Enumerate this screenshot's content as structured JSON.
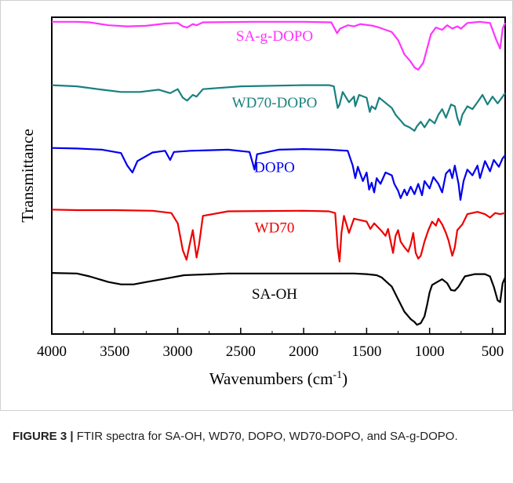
{
  "chart_data": {
    "type": "line",
    "xlabel": "Wavenumbers (cm⁻¹)",
    "ylabel": "Transmittance",
    "xlim": [
      4000,
      400
    ],
    "x_reversed": true,
    "xticks": [
      4000,
      3500,
      3000,
      2500,
      2000,
      1500,
      1000,
      500
    ],
    "grid": false,
    "legend": "inline-labels",
    "series": [
      {
        "name": "SA-g-DOPO",
        "color": "#ff33ff",
        "offset": 4,
        "points": [
          [
            4000,
            0.92
          ],
          [
            3800,
            0.92
          ],
          [
            3700,
            0.91
          ],
          [
            3550,
            0.86
          ],
          [
            3400,
            0.84
          ],
          [
            3250,
            0.85
          ],
          [
            3100,
            0.89
          ],
          [
            3000,
            0.9
          ],
          [
            2960,
            0.84
          ],
          [
            2925,
            0.82
          ],
          [
            2880,
            0.88
          ],
          [
            2850,
            0.86
          ],
          [
            2800,
            0.91
          ],
          [
            2400,
            0.92
          ],
          [
            2000,
            0.92
          ],
          [
            1780,
            0.91
          ],
          [
            1735,
            0.72
          ],
          [
            1710,
            0.8
          ],
          [
            1650,
            0.86
          ],
          [
            1600,
            0.84
          ],
          [
            1550,
            0.88
          ],
          [
            1450,
            0.85
          ],
          [
            1400,
            0.82
          ],
          [
            1300,
            0.74
          ],
          [
            1250,
            0.6
          ],
          [
            1200,
            0.35
          ],
          [
            1150,
            0.22
          ],
          [
            1120,
            0.12
          ],
          [
            1090,
            0.08
          ],
          [
            1050,
            0.2
          ],
          [
            1020,
            0.45
          ],
          [
            990,
            0.7
          ],
          [
            950,
            0.82
          ],
          [
            900,
            0.78
          ],
          [
            860,
            0.86
          ],
          [
            820,
            0.8
          ],
          [
            780,
            0.84
          ],
          [
            750,
            0.8
          ],
          [
            700,
            0.9
          ],
          [
            600,
            0.92
          ],
          [
            520,
            0.9
          ],
          [
            470,
            0.6
          ],
          [
            440,
            0.45
          ],
          [
            420,
            0.8
          ],
          [
            400,
            0.9
          ]
        ]
      },
      {
        "name": "WD70-DOPO",
        "color": "#1a8080",
        "offset": 3,
        "points": [
          [
            4000,
            0.92
          ],
          [
            3800,
            0.9
          ],
          [
            3600,
            0.84
          ],
          [
            3450,
            0.8
          ],
          [
            3300,
            0.8
          ],
          [
            3150,
            0.84
          ],
          [
            3060,
            0.78
          ],
          [
            3000,
            0.85
          ],
          [
            2960,
            0.7
          ],
          [
            2925,
            0.65
          ],
          [
            2880,
            0.75
          ],
          [
            2850,
            0.72
          ],
          [
            2800,
            0.85
          ],
          [
            2500,
            0.9
          ],
          [
            2000,
            0.92
          ],
          [
            1800,
            0.92
          ],
          [
            1760,
            0.9
          ],
          [
            1730,
            0.52
          ],
          [
            1715,
            0.58
          ],
          [
            1690,
            0.8
          ],
          [
            1640,
            0.62
          ],
          [
            1600,
            0.72
          ],
          [
            1590,
            0.55
          ],
          [
            1560,
            0.75
          ],
          [
            1500,
            0.7
          ],
          [
            1475,
            0.45
          ],
          [
            1460,
            0.55
          ],
          [
            1430,
            0.5
          ],
          [
            1400,
            0.7
          ],
          [
            1300,
            0.52
          ],
          [
            1270,
            0.4
          ],
          [
            1230,
            0.3
          ],
          [
            1200,
            0.22
          ],
          [
            1160,
            0.18
          ],
          [
            1120,
            0.12
          ],
          [
            1100,
            0.2
          ],
          [
            1070,
            0.28
          ],
          [
            1040,
            0.18
          ],
          [
            1000,
            0.32
          ],
          [
            960,
            0.25
          ],
          [
            930,
            0.4
          ],
          [
            900,
            0.5
          ],
          [
            870,
            0.35
          ],
          [
            830,
            0.58
          ],
          [
            800,
            0.55
          ],
          [
            780,
            0.35
          ],
          [
            760,
            0.22
          ],
          [
            740,
            0.4
          ],
          [
            700,
            0.55
          ],
          [
            660,
            0.5
          ],
          [
            620,
            0.62
          ],
          [
            580,
            0.75
          ],
          [
            540,
            0.58
          ],
          [
            500,
            0.72
          ],
          [
            460,
            0.6
          ],
          [
            420,
            0.72
          ],
          [
            400,
            0.78
          ]
        ]
      },
      {
        "name": "DOPO",
        "color": "#0000ee",
        "offset": 2,
        "points": [
          [
            4000,
            0.93
          ],
          [
            3800,
            0.92
          ],
          [
            3600,
            0.9
          ],
          [
            3450,
            0.84
          ],
          [
            3400,
            0.62
          ],
          [
            3360,
            0.5
          ],
          [
            3320,
            0.7
          ],
          [
            3200,
            0.85
          ],
          [
            3100,
            0.88
          ],
          [
            3060,
            0.72
          ],
          [
            3030,
            0.86
          ],
          [
            2900,
            0.88
          ],
          [
            2600,
            0.9
          ],
          [
            2430,
            0.86
          ],
          [
            2390,
            0.55
          ],
          [
            2370,
            0.82
          ],
          [
            2200,
            0.9
          ],
          [
            2000,
            0.91
          ],
          [
            1800,
            0.9
          ],
          [
            1650,
            0.88
          ],
          [
            1610,
            0.62
          ],
          [
            1590,
            0.4
          ],
          [
            1570,
            0.6
          ],
          [
            1530,
            0.35
          ],
          [
            1500,
            0.5
          ],
          [
            1480,
            0.2
          ],
          [
            1460,
            0.32
          ],
          [
            1440,
            0.15
          ],
          [
            1420,
            0.4
          ],
          [
            1390,
            0.3
          ],
          [
            1350,
            0.5
          ],
          [
            1300,
            0.45
          ],
          [
            1280,
            0.3
          ],
          [
            1250,
            0.18
          ],
          [
            1230,
            0.05
          ],
          [
            1200,
            0.2
          ],
          [
            1180,
            0.1
          ],
          [
            1150,
            0.25
          ],
          [
            1120,
            0.12
          ],
          [
            1090,
            0.3
          ],
          [
            1060,
            0.1
          ],
          [
            1040,
            0.35
          ],
          [
            1000,
            0.22
          ],
          [
            970,
            0.42
          ],
          [
            930,
            0.3
          ],
          [
            900,
            0.15
          ],
          [
            870,
            0.48
          ],
          [
            840,
            0.55
          ],
          [
            820,
            0.4
          ],
          [
            800,
            0.62
          ],
          [
            770,
            0.3
          ],
          [
            755,
            0.02
          ],
          [
            730,
            0.35
          ],
          [
            700,
            0.55
          ],
          [
            660,
            0.45
          ],
          [
            620,
            0.62
          ],
          [
            600,
            0.4
          ],
          [
            560,
            0.7
          ],
          [
            520,
            0.52
          ],
          [
            490,
            0.72
          ],
          [
            450,
            0.6
          ],
          [
            420,
            0.75
          ],
          [
            400,
            0.8
          ]
        ]
      },
      {
        "name": "WD70",
        "color": "#ee0000",
        "offset": 1,
        "points": [
          [
            4000,
            0.96
          ],
          [
            3800,
            0.95
          ],
          [
            3500,
            0.95
          ],
          [
            3200,
            0.94
          ],
          [
            3050,
            0.9
          ],
          [
            3000,
            0.72
          ],
          [
            2960,
            0.25
          ],
          [
            2930,
            0.08
          ],
          [
            2900,
            0.4
          ],
          [
            2880,
            0.6
          ],
          [
            2850,
            0.12
          ],
          [
            2830,
            0.35
          ],
          [
            2800,
            0.85
          ],
          [
            2600,
            0.93
          ],
          [
            2000,
            0.94
          ],
          [
            1800,
            0.93
          ],
          [
            1750,
            0.9
          ],
          [
            1730,
            0.3
          ],
          [
            1715,
            0.05
          ],
          [
            1700,
            0.55
          ],
          [
            1680,
            0.85
          ],
          [
            1640,
            0.55
          ],
          [
            1600,
            0.8
          ],
          [
            1500,
            0.75
          ],
          [
            1470,
            0.62
          ],
          [
            1440,
            0.72
          ],
          [
            1380,
            0.58
          ],
          [
            1350,
            0.5
          ],
          [
            1330,
            0.62
          ],
          [
            1290,
            0.2
          ],
          [
            1270,
            0.5
          ],
          [
            1250,
            0.6
          ],
          [
            1230,
            0.4
          ],
          [
            1200,
            0.3
          ],
          [
            1170,
            0.22
          ],
          [
            1150,
            0.35
          ],
          [
            1130,
            0.55
          ],
          [
            1110,
            0.2
          ],
          [
            1090,
            0.1
          ],
          [
            1070,
            0.15
          ],
          [
            1040,
            0.4
          ],
          [
            1010,
            0.6
          ],
          [
            980,
            0.75
          ],
          [
            950,
            0.68
          ],
          [
            930,
            0.8
          ],
          [
            900,
            0.7
          ],
          [
            870,
            0.55
          ],
          [
            850,
            0.42
          ],
          [
            820,
            0.15
          ],
          [
            800,
            0.3
          ],
          [
            780,
            0.6
          ],
          [
            740,
            0.7
          ],
          [
            700,
            0.88
          ],
          [
            620,
            0.92
          ],
          [
            560,
            0.88
          ],
          [
            520,
            0.82
          ],
          [
            480,
            0.9
          ],
          [
            440,
            0.88
          ],
          [
            400,
            0.9
          ]
        ]
      },
      {
        "name": "SA-OH",
        "color": "#000000",
        "offset": 0,
        "points": [
          [
            4000,
            0.96
          ],
          [
            3800,
            0.95
          ],
          [
            3700,
            0.9
          ],
          [
            3550,
            0.8
          ],
          [
            3450,
            0.76
          ],
          [
            3350,
            0.76
          ],
          [
            3250,
            0.8
          ],
          [
            3100,
            0.86
          ],
          [
            2950,
            0.92
          ],
          [
            2600,
            0.95
          ],
          [
            2200,
            0.95
          ],
          [
            1800,
            0.95
          ],
          [
            1600,
            0.95
          ],
          [
            1500,
            0.94
          ],
          [
            1420,
            0.92
          ],
          [
            1380,
            0.88
          ],
          [
            1300,
            0.72
          ],
          [
            1250,
            0.5
          ],
          [
            1200,
            0.28
          ],
          [
            1150,
            0.15
          ],
          [
            1120,
            0.1
          ],
          [
            1100,
            0.05
          ],
          [
            1070,
            0.08
          ],
          [
            1040,
            0.2
          ],
          [
            1020,
            0.4
          ],
          [
            1000,
            0.62
          ],
          [
            980,
            0.75
          ],
          [
            940,
            0.8
          ],
          [
            900,
            0.85
          ],
          [
            860,
            0.78
          ],
          [
            830,
            0.66
          ],
          [
            800,
            0.65
          ],
          [
            770,
            0.72
          ],
          [
            720,
            0.9
          ],
          [
            640,
            0.94
          ],
          [
            560,
            0.94
          ],
          [
            520,
            0.9
          ],
          [
            490,
            0.72
          ],
          [
            460,
            0.48
          ],
          [
            440,
            0.45
          ],
          [
            420,
            0.78
          ],
          [
            400,
            0.88
          ]
        ]
      }
    ]
  },
  "caption": {
    "figure_label": "FIGURE 3 |",
    "text": " FTIR spectra for SA-OH, WD70, DOPO, WD70-DOPO, and SA-g-DOPO."
  }
}
